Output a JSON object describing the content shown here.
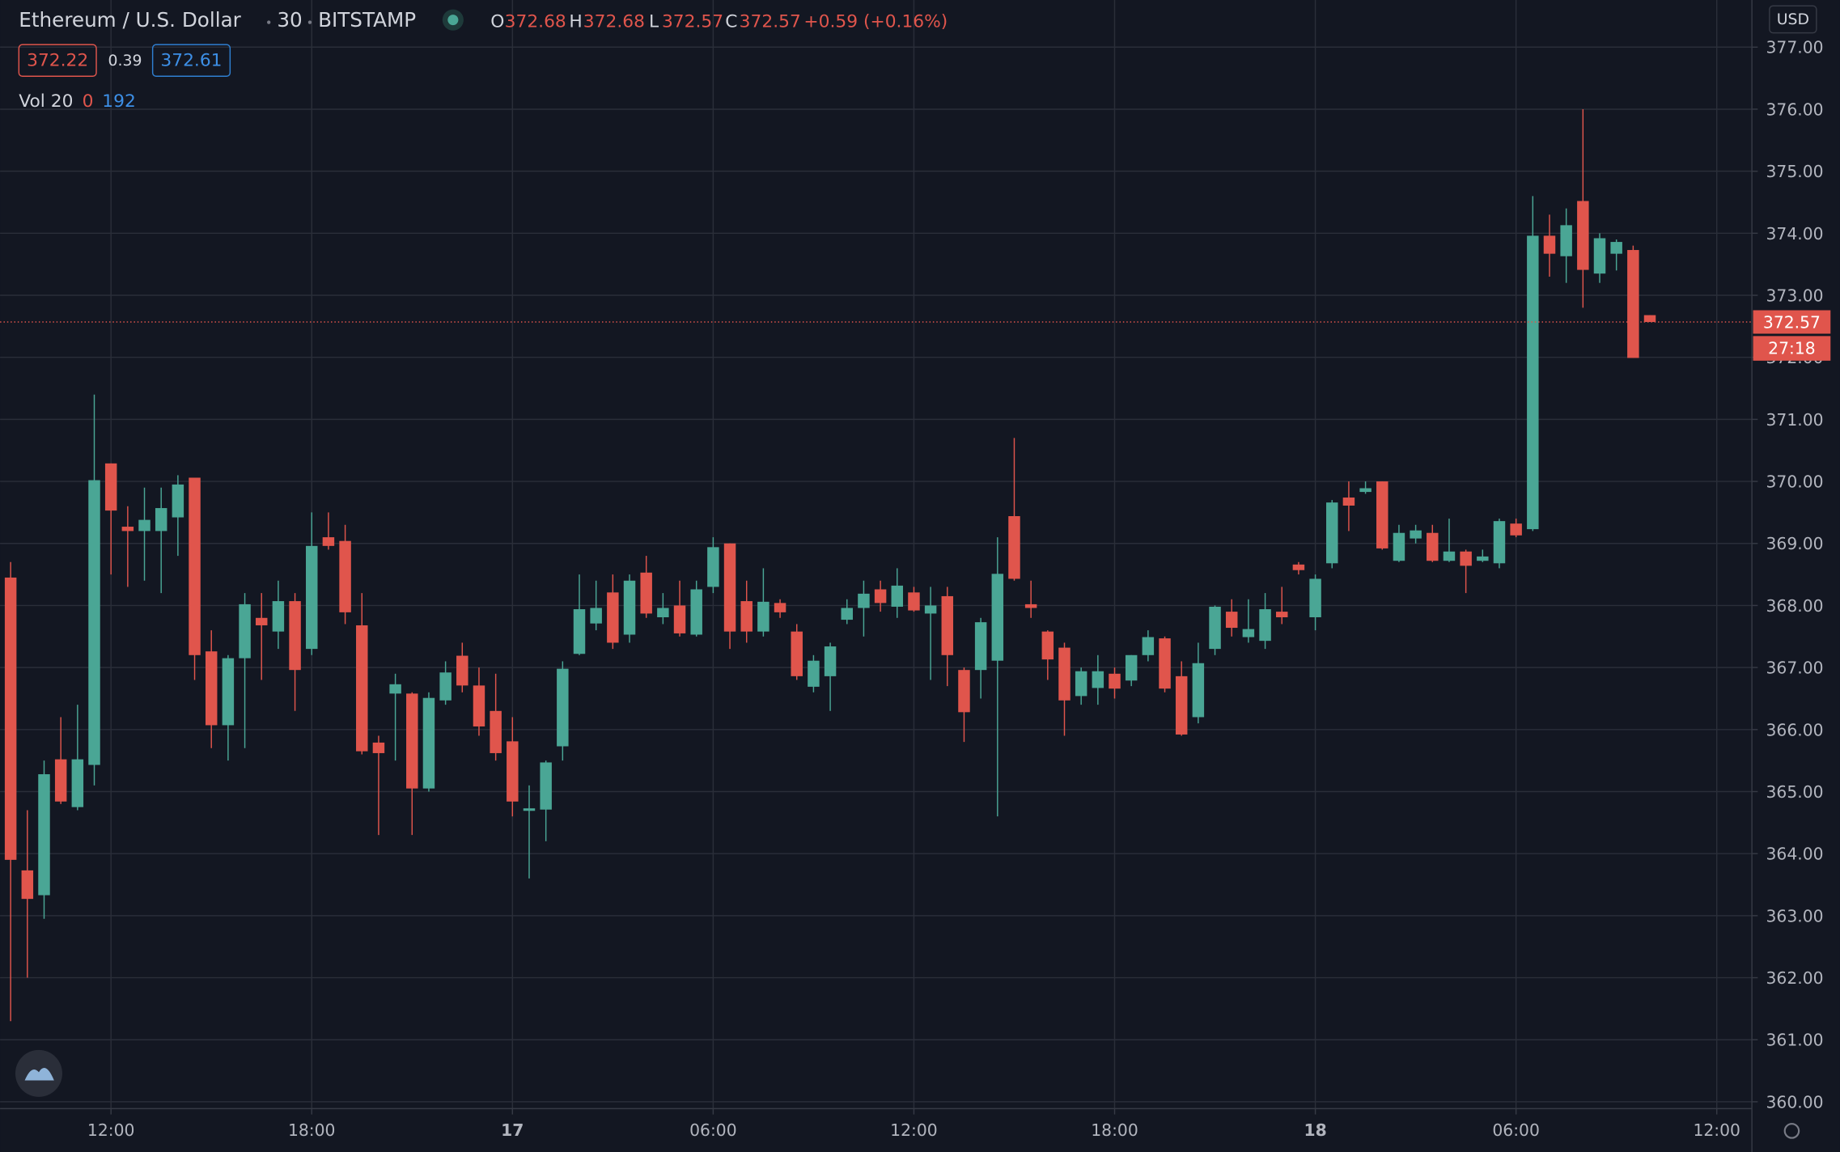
{
  "header": {
    "symbol": "Ethereum / U.S. Dollar",
    "interval": "30",
    "exchange": "BITSTAMP",
    "o_label": "O",
    "o_value": "372.68",
    "h_label": "H",
    "h_value": "372.68",
    "l_label": "L",
    "l_value": "372.57",
    "c_label": "C",
    "c_value": "372.57",
    "change": "+0.59 (+0.16%)",
    "bid": "372.22",
    "spread": "0.39",
    "ask": "372.61",
    "vol_label": "Vol 20",
    "vol_value": "0",
    "vol_ma": "192",
    "currency": "USD",
    "countdown": "27:18",
    "last_price": "372.57"
  },
  "chart_data": {
    "type": "candlestick",
    "up_color": "#4aa695",
    "down_color": "#e0554c",
    "grid": true,
    "open": [
      368.45,
      363.73,
      363.33,
      365.52,
      364.75,
      365.43,
      370.29,
      369.27,
      369.2,
      369.2,
      369.42,
      370.06,
      367.26,
      366.07,
      367.15,
      367.8,
      367.58,
      368.07,
      367.3,
      369.1,
      369.04,
      367.68,
      365.79,
      366.58,
      366.58,
      365.05,
      366.47,
      367.19,
      366.71,
      366.3,
      365.81,
      364.69,
      364.71,
      365.73,
      367.22,
      367.71,
      368.21,
      367.53,
      368.53,
      367.81,
      368.0,
      367.53,
      368.3,
      369.0,
      368.07,
      367.58,
      368.04,
      367.58,
      366.69,
      366.86,
      367.77,
      367.96,
      368.26,
      367.98,
      368.21,
      367.87,
      368.15,
      366.96,
      366.96,
      367.11,
      369.44,
      368.02,
      367.58,
      367.32,
      366.54,
      366.67,
      366.9,
      366.79,
      367.2,
      367.47,
      366.86,
      366.2,
      367.3,
      367.9,
      367.49,
      367.43,
      367.9,
      368.66,
      367.81,
      368.68,
      369.74,
      369.83,
      370.0,
      368.72,
      369.08,
      369.17,
      368.72,
      368.87,
      368.72,
      368.68,
      369.32,
      369.23,
      373.96,
      373.63,
      374.52,
      373.35,
      373.67,
      373.73,
      372.68
    ],
    "high": [
      368.7,
      364.7,
      365.5,
      366.2,
      366.4,
      371.4,
      370.29,
      369.6,
      369.9,
      369.9,
      370.1,
      370.06,
      367.6,
      367.2,
      368.2,
      368.2,
      368.4,
      368.2,
      369.5,
      369.5,
      369.3,
      368.2,
      365.9,
      366.9,
      366.6,
      366.6,
      367.1,
      367.4,
      367.0,
      366.9,
      366.2,
      365.1,
      365.5,
      367.1,
      368.5,
      368.4,
      368.5,
      368.5,
      368.8,
      368.2,
      368.4,
      368.4,
      369.1,
      369.0,
      368.4,
      368.6,
      368.1,
      367.7,
      367.2,
      367.4,
      368.1,
      368.4,
      368.4,
      368.6,
      368.3,
      368.3,
      368.3,
      367.0,
      367.8,
      369.1,
      370.7,
      368.4,
      367.6,
      367.4,
      367.0,
      367.2,
      367.0,
      367.2,
      367.6,
      367.5,
      367.1,
      367.4,
      368.0,
      368.1,
      368.1,
      368.2,
      368.3,
      368.7,
      368.5,
      369.7,
      370.0,
      370.0,
      370.0,
      369.3,
      369.3,
      369.3,
      369.4,
      368.9,
      368.9,
      369.4,
      369.4,
      374.6,
      374.3,
      374.4,
      376.0,
      374.0,
      373.9,
      373.8,
      372.68
    ],
    "low": [
      361.3,
      362.0,
      362.95,
      364.8,
      364.7,
      365.1,
      368.5,
      368.3,
      368.4,
      368.2,
      368.8,
      366.8,
      365.7,
      365.5,
      365.7,
      366.8,
      367.3,
      366.3,
      367.2,
      368.9,
      367.7,
      365.6,
      364.3,
      365.5,
      364.3,
      365.0,
      366.4,
      366.6,
      365.9,
      365.5,
      364.6,
      363.6,
      364.2,
      365.5,
      367.2,
      367.6,
      367.3,
      367.4,
      367.8,
      367.7,
      367.5,
      367.5,
      368.2,
      367.3,
      367.4,
      367.5,
      367.8,
      366.8,
      366.6,
      366.3,
      367.7,
      367.5,
      367.9,
      367.8,
      367.9,
      366.8,
      366.7,
      365.8,
      366.5,
      364.6,
      368.4,
      367.8,
      366.8,
      365.9,
      366.4,
      366.4,
      366.5,
      366.7,
      367.1,
      366.6,
      365.9,
      366.1,
      367.2,
      367.5,
      367.4,
      367.3,
      367.7,
      368.5,
      367.6,
      368.6,
      369.2,
      369.8,
      368.9,
      368.7,
      369.0,
      368.7,
      368.7,
      368.2,
      368.7,
      368.6,
      369.1,
      369.2,
      373.3,
      373.2,
      372.8,
      373.2,
      373.4,
      371.99,
      372.57
    ],
    "close": [
      363.9,
      363.27,
      365.28,
      364.84,
      365.52,
      370.02,
      369.53,
      369.2,
      369.38,
      369.57,
      369.95,
      367.2,
      366.07,
      367.15,
      368.02,
      367.68,
      368.07,
      366.96,
      368.96,
      368.96,
      367.89,
      365.65,
      365.62,
      366.73,
      365.05,
      366.51,
      366.92,
      366.71,
      366.05,
      365.62,
      364.84,
      364.73,
      365.47,
      366.98,
      367.94,
      367.96,
      367.4,
      368.4,
      367.87,
      367.96,
      367.55,
      368.26,
      368.94,
      367.58,
      367.58,
      368.06,
      367.89,
      366.86,
      367.11,
      367.34,
      367.96,
      368.19,
      368.04,
      368.32,
      367.92,
      368.0,
      367.2,
      366.28,
      367.73,
      368.51,
      368.43,
      367.96,
      367.13,
      366.47,
      366.94,
      366.94,
      366.66,
      367.2,
      367.49,
      366.66,
      365.92,
      367.07,
      367.98,
      367.64,
      367.62,
      367.94,
      367.81,
      368.57,
      368.43,
      369.66,
      369.61,
      369.89,
      368.92,
      369.17,
      369.21,
      368.72,
      368.87,
      368.64,
      368.79,
      369.36,
      369.13,
      373.96,
      373.67,
      374.13,
      373.41,
      373.92,
      373.86,
      371.99,
      372.57
    ],
    "ylim": [
      359.89,
      377.76
    ],
    "yticks": [
      {
        "value": 360,
        "label": "360.00"
      },
      {
        "value": 361,
        "label": "361.00"
      },
      {
        "value": 362,
        "label": "362.00"
      },
      {
        "value": 363,
        "label": "363.00"
      },
      {
        "value": 364,
        "label": "364.00"
      },
      {
        "value": 365,
        "label": "365.00"
      },
      {
        "value": 366,
        "label": "366.00"
      },
      {
        "value": 367,
        "label": "367.00"
      },
      {
        "value": 368,
        "label": "368.00"
      },
      {
        "value": 369,
        "label": "369.00"
      },
      {
        "value": 370,
        "label": "370.00"
      },
      {
        "value": 371,
        "label": "371.00"
      },
      {
        "value": 372,
        "label": "372.00"
      },
      {
        "value": 373,
        "label": "373.00"
      },
      {
        "value": 374,
        "label": "374.00"
      },
      {
        "value": 375,
        "label": "375.00"
      },
      {
        "value": 376,
        "label": "376.00"
      },
      {
        "value": 377,
        "label": "377.00"
      }
    ],
    "xlim": [
      -0.63,
      104.1
    ],
    "xticks": [
      {
        "value": 6,
        "label": "12:00"
      },
      {
        "value": 18,
        "label": "18:00"
      },
      {
        "value": 30,
        "label": "17"
      },
      {
        "value": 42,
        "label": "06:00"
      },
      {
        "value": 54,
        "label": "12:00"
      },
      {
        "value": 66,
        "label": "18:00"
      },
      {
        "value": 78,
        "label": "18"
      },
      {
        "value": 90,
        "label": "06:00"
      },
      {
        "value": 102,
        "label": "12:00"
      }
    ]
  }
}
